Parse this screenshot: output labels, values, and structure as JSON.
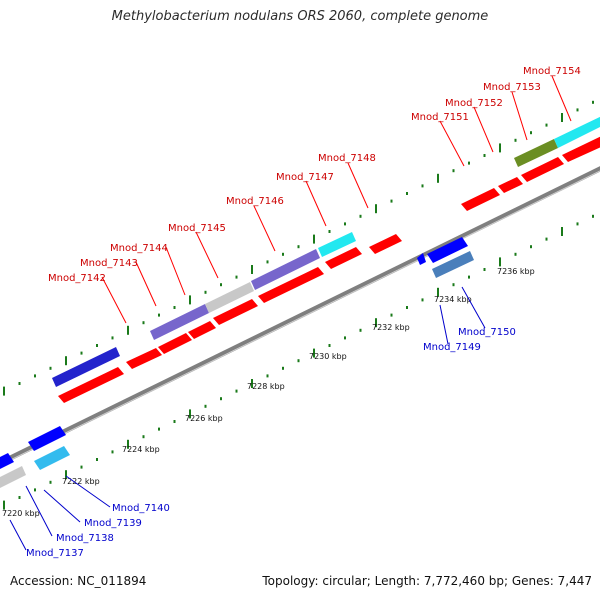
{
  "title": "Methylobacterium nodulans ORS 2060, complete genome",
  "footer": {
    "accession": "Accession: NC_011894",
    "summary": "Topology: circular; Length: 7,772,460 bp; Genes: 7,447"
  },
  "colors": {
    "forward_label": "#cc0000",
    "reverse_label": "#0000cc",
    "backbone": "#8a8a8a",
    "tick": "#1a7a1a"
  },
  "position_labels": [
    "7220 kbp",
    "7222 kbp",
    "7224 kbp",
    "7226 kbp",
    "7228 kbp",
    "7230 kbp",
    "7232 kbp",
    "7234 kbp",
    "7236 kbp"
  ],
  "forward_genes": [
    "Mnod_7142",
    "Mnod_7143",
    "Mnod_7144",
    "Mnod_7145",
    "Mnod_7146",
    "Mnod_7147",
    "Mnod_7148",
    "Mnod_7151",
    "Mnod_7152",
    "Mnod_7153",
    "Mnod_7154"
  ],
  "reverse_genes": [
    "Mnod_7137",
    "Mnod_7138",
    "Mnod_7139",
    "Mnod_7140",
    "Mnod_7149",
    "Mnod_7150"
  ]
}
